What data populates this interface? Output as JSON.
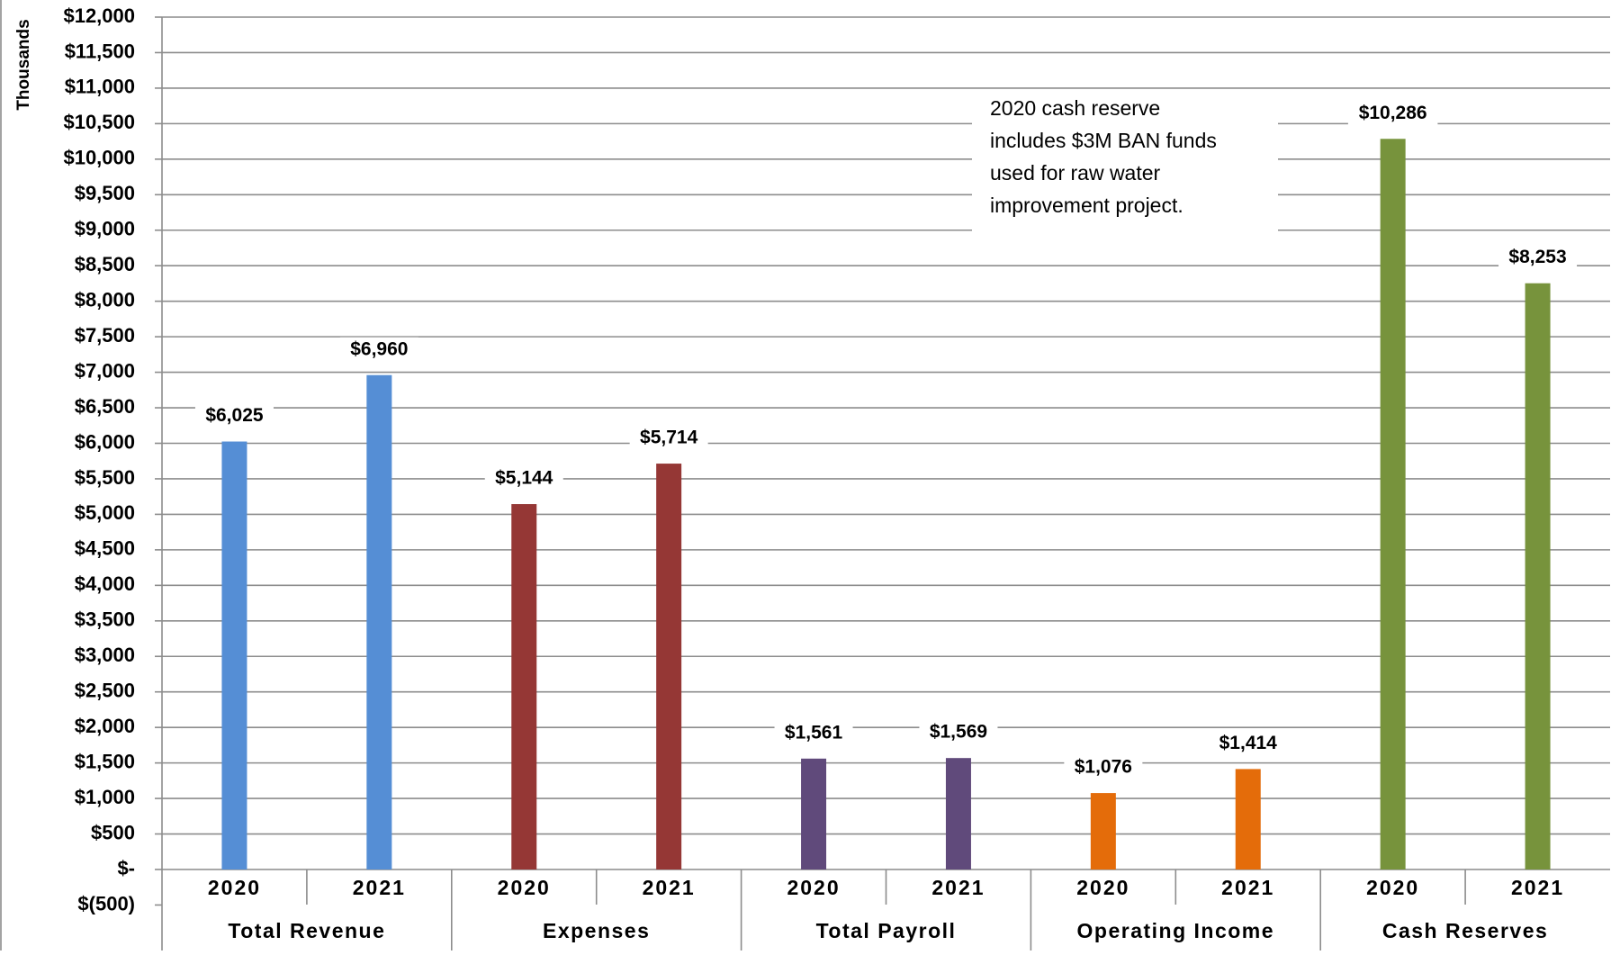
{
  "chart_data": {
    "type": "bar",
    "title": "",
    "ylabel": "Thousands",
    "xlabel": "",
    "ylim": [
      -500,
      12000
    ],
    "y_tick_step": 500,
    "y_tick_labels": [
      "$(500)",
      "$-",
      "$500",
      "$1,000",
      "$1,500",
      "$2,000",
      "$2,500",
      "$3,000",
      "$3,500",
      "$4,000",
      "$4,500",
      "$5,000",
      "$5,500",
      "$6,000",
      "$6,500",
      "$7,000",
      "$7,500",
      "$8,000",
      "$8,500",
      "$9,000",
      "$9,500",
      "$10,000",
      "$10,500",
      "$11,000",
      "$11,500",
      "$12,000"
    ],
    "grid": true,
    "legend": "none",
    "groups": [
      {
        "label": "Total Revenue",
        "color": "#558ED5",
        "bars": [
          {
            "category": "2020",
            "value": 6025,
            "label": "$6,025"
          },
          {
            "category": "2021",
            "value": 6960,
            "label": "$6,960"
          }
        ]
      },
      {
        "label": "Expenses",
        "color": "#953735",
        "bars": [
          {
            "category": "2020",
            "value": 5144,
            "label": "$5,144"
          },
          {
            "category": "2021",
            "value": 5714,
            "label": "$5,714"
          }
        ]
      },
      {
        "label": "Total Payroll",
        "color": "#604A7B",
        "bars": [
          {
            "category": "2020",
            "value": 1561,
            "label": "$1,561"
          },
          {
            "category": "2021",
            "value": 1569,
            "label": "$1,569"
          }
        ]
      },
      {
        "label": "Operating Income",
        "color": "#E46C0A",
        "bars": [
          {
            "category": "2020",
            "value": 1076,
            "label": "$1,076"
          },
          {
            "category": "2021",
            "value": 1414,
            "label": "$1,414"
          }
        ]
      },
      {
        "label": "Cash Reserves",
        "color": "#77933C",
        "bars": [
          {
            "category": "2020",
            "value": 10286,
            "label": "$10,286"
          },
          {
            "category": "2021",
            "value": 8253,
            "label": "$8,253"
          }
        ]
      }
    ],
    "annotation": {
      "lines": [
        "2020 cash reserve",
        "includes $3M BAN funds",
        "used for raw water",
        "improvement project."
      ]
    }
  }
}
